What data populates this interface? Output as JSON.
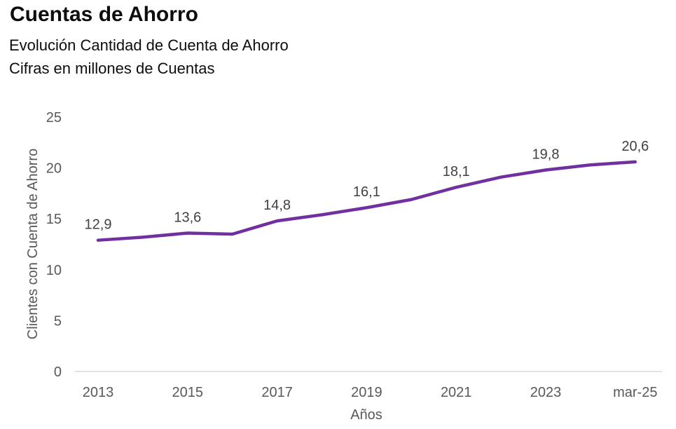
{
  "chart_data": {
    "type": "line",
    "title": "Cuentas de Ahorro",
    "subtitle_line1": "Evolución Cantidad de Cuenta de Ahorro",
    "subtitle_line2": "Cifras en millones de Cuentas",
    "xlabel": "Años",
    "ylabel": "Clientes con Cuenta de Ahorro",
    "ylim": [
      0,
      25
    ],
    "y_ticks": [
      0,
      5,
      10,
      15,
      20,
      25
    ],
    "x_tick_labels": [
      "2013",
      "2015",
      "2017",
      "2019",
      "2021",
      "2023",
      "mar-25"
    ],
    "grid": false,
    "legend_position": "none",
    "line_color": "#7030A0",
    "colors": {
      "tick_text": "#595959",
      "data_label_text": "#404040",
      "axis_line": "#D9D9D9",
      "title_text": "#0d0d0d"
    },
    "series": [
      {
        "points": [
          {
            "x": "2013",
            "y": 12.9,
            "data_label": "12,9"
          },
          {
            "x": "2014",
            "y": 13.2,
            "data_label": null
          },
          {
            "x": "2015",
            "y": 13.6,
            "data_label": "13,6"
          },
          {
            "x": "2016",
            "y": 13.5,
            "data_label": null
          },
          {
            "x": "2017",
            "y": 14.8,
            "data_label": "14,8"
          },
          {
            "x": "2018",
            "y": 15.4,
            "data_label": null
          },
          {
            "x": "2019",
            "y": 16.1,
            "data_label": "16,1"
          },
          {
            "x": "2020",
            "y": 16.9,
            "data_label": null
          },
          {
            "x": "2021",
            "y": 18.1,
            "data_label": "18,1"
          },
          {
            "x": "2022",
            "y": 19.1,
            "data_label": null
          },
          {
            "x": "2023",
            "y": 19.8,
            "data_label": "19,8"
          },
          {
            "x": "2024",
            "y": 20.3,
            "data_label": null
          },
          {
            "x": "mar-25",
            "y": 20.6,
            "data_label": "20,6"
          }
        ]
      }
    ]
  }
}
